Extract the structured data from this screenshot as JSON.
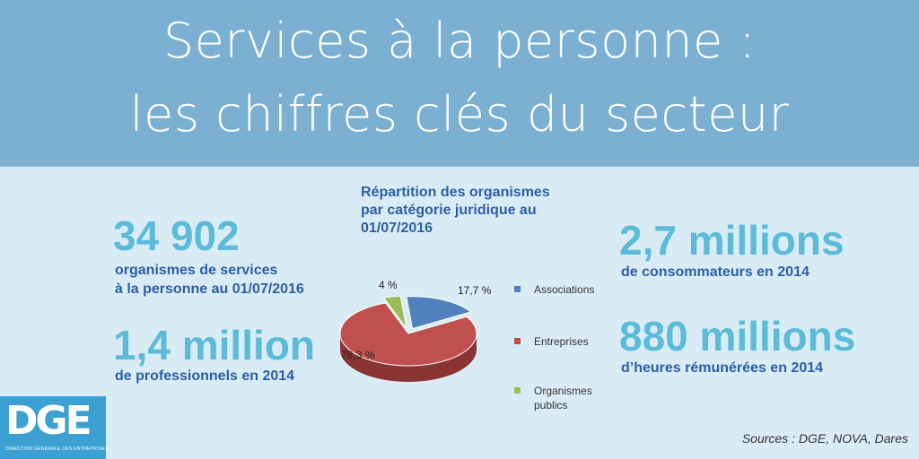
{
  "banner": {
    "line1": "Services à la personne :",
    "line2": "les chiffres clés du secteur"
  },
  "stats": {
    "organismes_value": "34 902",
    "organismes_label_1": "organismes de services",
    "organismes_label_2": "à la personne au 01/07/2016",
    "pros_value": "1,4 million",
    "pros_label": "de professionnels en 2014",
    "conso_value": "2,7 millions",
    "conso_label": "de consommateurs en 2014",
    "heures_value": "880 millions",
    "heures_label": "d’heures rémunérées en 2014"
  },
  "chart_data": {
    "type": "pie",
    "title_lines": [
      "Répartition des organismes",
      "par catégorie juridique au",
      "01/07/2016"
    ],
    "labels": [
      "Associations",
      "Entreprises",
      "Organismes publics"
    ],
    "legend_lines": [
      [
        "Associations"
      ],
      [
        "Entreprises"
      ],
      [
        "Organismes",
        "publics"
      ]
    ],
    "values": [
      17.7,
      78.3,
      4
    ],
    "value_labels": [
      "17,7 %",
      "78,3 %",
      "4 %"
    ],
    "colors": [
      "#4f81bd",
      "#c0504d",
      "#9bbb59"
    ],
    "side_colors": [
      "#35598a",
      "#8a3533",
      "#6c8a3a"
    ],
    "legend_position": "right"
  },
  "logo": {
    "text": "DGE",
    "subtitle": "DIRECTION GÉNÉRALE DES ENTREPRISES"
  },
  "footer": {
    "sources": "Sources : DGE, NOVA, Dares"
  }
}
